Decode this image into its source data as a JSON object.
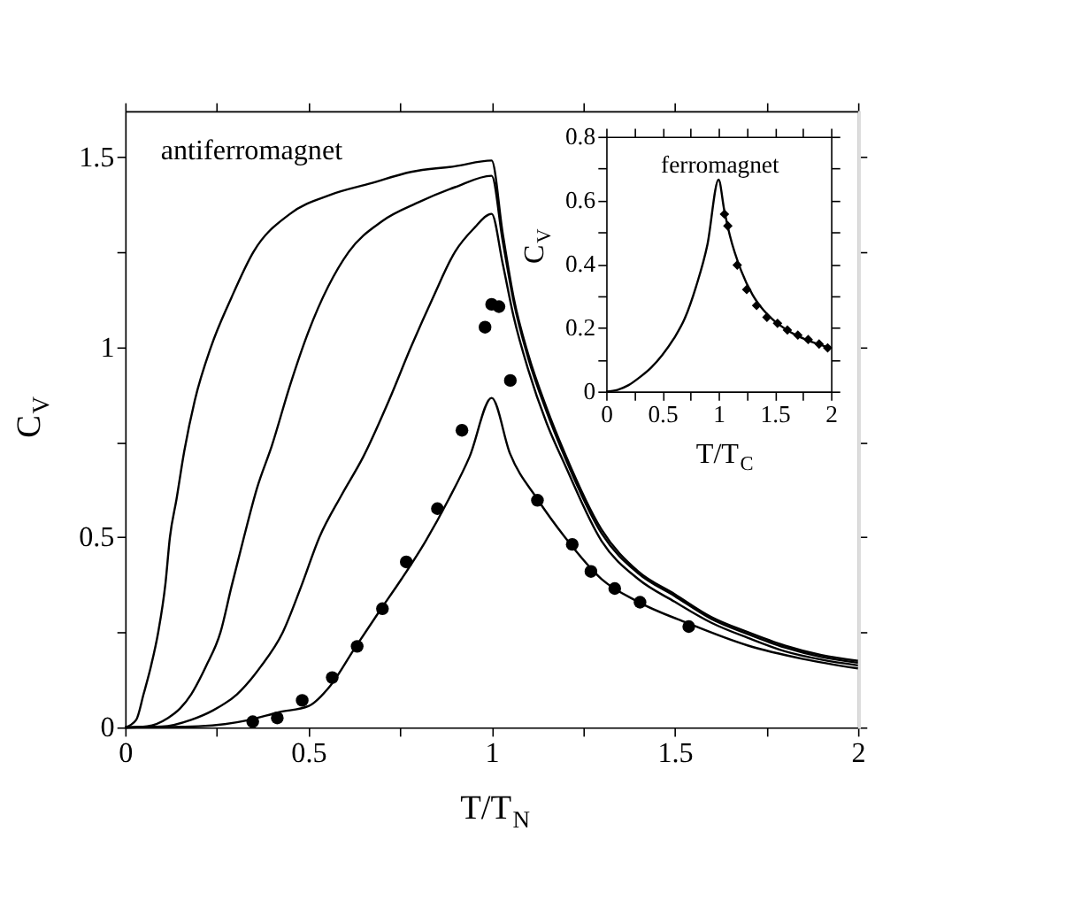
{
  "chart_data": [
    {
      "type": "line",
      "xlabel": "T/T$_{N}$",
      "ylabel": "C$_{V}$",
      "annotations": [
        "antiferromagnet"
      ],
      "xlim": [
        0,
        2
      ],
      "ylim": [
        0,
        1.62
      ],
      "xticks": [
        0,
        {
          "value": 0.25,
          "label": null
        },
        0.5,
        {
          "value": 0.75,
          "label": null
        },
        1,
        {
          "value": 1.25,
          "label": null
        },
        1.5,
        {
          "value": 1.75,
          "label": null
        },
        2
      ],
      "yticks": [
        0,
        {
          "value": 0.25,
          "label": null
        },
        0.5,
        {
          "value": 0.75,
          "label": null
        },
        1,
        {
          "value": 1.25,
          "label": null
        },
        1.5
      ],
      "series": [
        {
          "color": "#000000",
          "x": [
            0,
            0.03,
            0.05,
            0.07,
            0.09,
            0.11,
            0.122,
            0.14,
            0.16,
            0.19,
            0.234,
            0.29,
            0.35,
            0.45,
            0.56,
            0.67,
            0.78,
            0.9,
            1.0,
            1.03,
            1.06,
            1.1,
            1.15,
            1.2,
            1.3,
            1.4,
            1.5,
            1.6,
            1.7,
            1.8,
            1.9,
            2.0
          ],
          "values": [
            0,
            0.02,
            0.087,
            0.16,
            0.25,
            0.38,
            0.5,
            0.6,
            0.72,
            0.86,
            1.0,
            1.13,
            1.25,
            1.35,
            1.4,
            1.43,
            1.46,
            1.475,
            1.49,
            1.3,
            1.13,
            0.98,
            0.84,
            0.72,
            0.52,
            0.41,
            0.35,
            0.29,
            0.25,
            0.215,
            0.19,
            0.175
          ]
        },
        {
          "color": "#000000",
          "x": [
            0,
            0.06,
            0.117,
            0.15,
            0.18,
            0.22,
            0.26,
            0.29,
            0.324,
            0.36,
            0.4,
            0.45,
            0.5,
            0.61,
            0.7,
            0.8,
            0.9,
            1.0,
            1.03,
            1.06,
            1.1,
            1.15,
            1.2,
            1.3,
            1.4,
            1.5,
            1.6,
            1.7,
            1.8,
            1.9,
            2.0
          ],
          "values": [
            0,
            0.003,
            0.025,
            0.05,
            0.087,
            0.16,
            0.25,
            0.37,
            0.5,
            0.63,
            0.74,
            0.9,
            1.04,
            1.25,
            1.33,
            1.38,
            1.42,
            1.45,
            1.28,
            1.12,
            0.97,
            0.83,
            0.71,
            0.51,
            0.405,
            0.345,
            0.285,
            0.245,
            0.21,
            0.185,
            0.17
          ]
        },
        {
          "color": "#000000",
          "x": [
            0,
            0.1,
            0.18,
            0.24,
            0.305,
            0.37,
            0.43,
            0.48,
            0.53,
            0.59,
            0.65,
            0.72,
            0.78,
            0.84,
            0.9,
            0.95,
            1.0,
            1.03,
            1.06,
            1.1,
            1.15,
            1.2,
            1.3,
            1.4,
            1.5,
            1.6,
            1.7,
            1.8,
            1.9,
            2.0
          ],
          "values": [
            0,
            0.002,
            0.02,
            0.045,
            0.087,
            0.16,
            0.25,
            0.37,
            0.5,
            0.61,
            0.712,
            0.86,
            1.0,
            1.13,
            1.25,
            1.31,
            1.35,
            1.22,
            1.08,
            0.94,
            0.8,
            0.69,
            0.49,
            0.39,
            0.33,
            0.275,
            0.235,
            0.2,
            0.178,
            0.163
          ]
        },
        {
          "color": "#000000",
          "x": [
            0,
            0.2,
            0.34,
            0.42,
            0.5,
            0.56,
            0.625,
            0.69,
            0.754,
            0.82,
            0.883,
            0.94,
            1.0,
            1.05,
            1.125,
            1.2,
            1.3,
            1.4,
            1.535,
            1.7,
            1.85,
            2.0
          ],
          "values": [
            0,
            0.003,
            0.02,
            0.04,
            0.056,
            0.11,
            0.206,
            0.3,
            0.39,
            0.49,
            0.6,
            0.712,
            0.866,
            0.72,
            0.6,
            0.5,
            0.39,
            0.33,
            0.274,
            0.215,
            0.18,
            0.155
          ]
        },
        {
          "type": "scatter",
          "color": "#000000",
          "marker": "circle",
          "x": [
            0.348,
            0.415,
            0.483,
            0.565,
            0.633,
            0.702,
            0.767,
            0.852,
            0.919,
            0.982,
            1.0,
            1.02,
            1.051,
            1.125,
            1.22,
            1.271,
            1.336,
            1.405,
            1.538
          ],
          "values": [
            0.015,
            0.025,
            0.071,
            0.131,
            0.213,
            0.312,
            0.435,
            0.575,
            0.781,
            1.052,
            1.112,
            1.106,
            0.912,
            0.597,
            0.481,
            0.41,
            0.365,
            0.329,
            0.265
          ]
        }
      ]
    },
    {
      "type": "line",
      "xlabel": "T/T$_{C}$",
      "ylabel": "C$_{V}$",
      "annotations": [
        "ferromagnet"
      ],
      "xlim": [
        0,
        2
      ],
      "ylim": [
        0,
        0.8
      ],
      "xticks": [
        0,
        {
          "value": 0.25,
          "label": null
        },
        0.5,
        {
          "value": 0.75,
          "label": null
        },
        1,
        {
          "value": 1.25,
          "label": null
        },
        1.5,
        {
          "value": 1.75,
          "label": null
        },
        2
      ],
      "yticks": [
        0,
        {
          "value": 0.1,
          "label": null
        },
        0.2,
        {
          "value": 0.3,
          "label": null
        },
        0.4,
        {
          "value": 0.5,
          "label": null
        },
        0.6,
        {
          "value": 0.7,
          "label": null
        },
        0.8
      ],
      "series": [
        {
          "color": "#000000",
          "x": [
            0,
            0.1,
            0.2,
            0.3,
            0.4,
            0.5,
            0.6,
            0.7,
            0.8,
            0.9,
            1.0,
            1.05,
            1.1,
            1.2,
            1.3,
            1.4,
            1.5,
            1.6,
            1.7,
            1.8,
            1.9,
            2.0
          ],
          "values": [
            0,
            0.005,
            0.02,
            0.045,
            0.075,
            0.115,
            0.165,
            0.23,
            0.33,
            0.46,
            0.665,
            0.57,
            0.49,
            0.38,
            0.305,
            0.255,
            0.22,
            0.195,
            0.175,
            0.16,
            0.147,
            0.135
          ]
        },
        {
          "type": "scatter",
          "color": "#000000",
          "marker": "diamond",
          "x": [
            1.052,
            1.082,
            1.166,
            1.25,
            1.338,
            1.43,
            1.524,
            1.612,
            1.705,
            1.797,
            1.894,
            1.97
          ],
          "values": [
            0.557,
            0.52,
            0.397,
            0.32,
            0.27,
            0.233,
            0.214,
            0.193,
            0.177,
            0.163,
            0.149,
            0.137
          ]
        }
      ]
    }
  ]
}
